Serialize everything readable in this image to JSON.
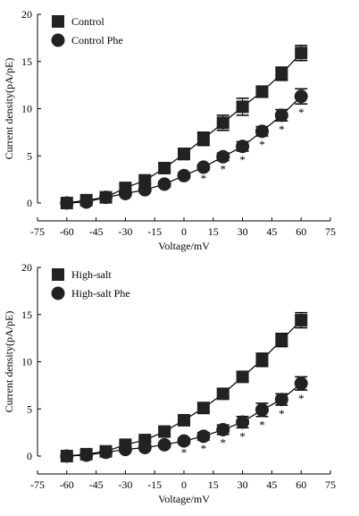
{
  "chart_data": [
    {
      "type": "line",
      "xlabel": "Voltage/mV",
      "ylabel": "Current density(pA/pE)",
      "xlim": [
        -75,
        75
      ],
      "ylim": [
        0,
        20
      ],
      "xticks": [
        -75,
        -60,
        -45,
        -30,
        -15,
        0,
        15,
        30,
        45,
        60,
        75
      ],
      "yticks": [
        0,
        5,
        10,
        15,
        20
      ],
      "legend_position": "top-left",
      "x": [
        -60,
        -50,
        -40,
        -30,
        -20,
        -10,
        0,
        10,
        20,
        30,
        40,
        50,
        60
      ],
      "series": [
        {
          "name": "Control",
          "marker": "square",
          "values": [
            0.0,
            0.3,
            0.6,
            1.6,
            2.4,
            3.7,
            5.2,
            6.8,
            8.5,
            10.2,
            11.8,
            13.7,
            15.9
          ],
          "errors": [
            0,
            0.1,
            0.2,
            0.3,
            0.3,
            0.4,
            0.6,
            0.7,
            0.8,
            0.9,
            0.6,
            0.7,
            0.8
          ]
        },
        {
          "name": "Control Phe",
          "marker": "circle",
          "values": [
            0.0,
            0.1,
            0.6,
            1.0,
            1.4,
            2.0,
            2.9,
            3.8,
            4.9,
            6.0,
            7.6,
            9.3,
            11.3
          ],
          "errors": [
            0,
            0.1,
            0.1,
            0.2,
            0.2,
            0.3,
            0.3,
            0.3,
            0.4,
            0.5,
            0.5,
            0.6,
            0.8
          ]
        }
      ],
      "significance_label": "*",
      "significance_x": [
        10,
        20,
        30,
        40,
        50,
        60
      ]
    },
    {
      "type": "line",
      "xlabel": "Voltage/mV",
      "ylabel": "Current density(pA/pE)",
      "xlim": [
        -75,
        75
      ],
      "ylim": [
        0,
        20
      ],
      "xticks": [
        -75,
        -60,
        -45,
        -30,
        -15,
        0,
        15,
        30,
        45,
        60,
        75
      ],
      "yticks": [
        0,
        5,
        10,
        15,
        20
      ],
      "legend_position": "top-left",
      "x": [
        -60,
        -50,
        -40,
        -30,
        -20,
        -10,
        0,
        10,
        20,
        30,
        40,
        50,
        60
      ],
      "series": [
        {
          "name": "High-salt",
          "marker": "square",
          "values": [
            0.0,
            0.2,
            0.5,
            1.2,
            1.7,
            2.6,
            3.8,
            5.1,
            6.6,
            8.4,
            10.2,
            12.3,
            14.4
          ],
          "errors": [
            0,
            0.1,
            0.1,
            0.2,
            0.2,
            0.3,
            0.3,
            0.4,
            0.4,
            0.5,
            0.7,
            0.7,
            0.8
          ]
        },
        {
          "name": "High-salt Phe",
          "marker": "circle",
          "values": [
            0.0,
            0.1,
            0.4,
            0.7,
            0.9,
            1.2,
            1.6,
            2.1,
            2.8,
            3.6,
            4.9,
            6.0,
            7.7
          ],
          "errors": [
            0,
            0.1,
            0.1,
            0.2,
            0.2,
            0.2,
            0.3,
            0.4,
            0.5,
            0.6,
            0.7,
            0.6,
            0.7
          ]
        }
      ],
      "significance_label": "*",
      "significance_x": [
        0,
        10,
        20,
        30,
        40,
        50,
        60
      ]
    }
  ]
}
